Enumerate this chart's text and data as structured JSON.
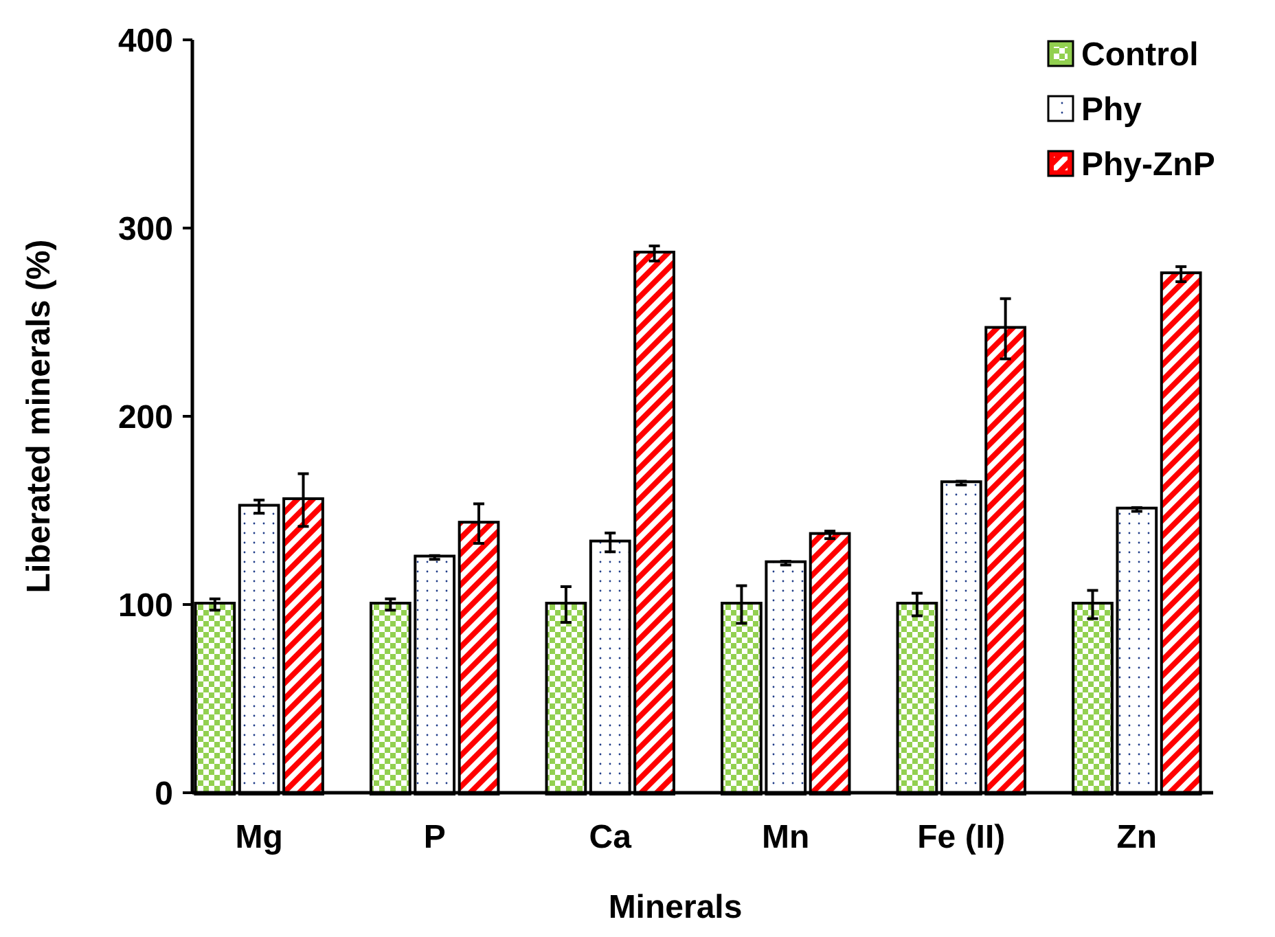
{
  "chart_data": {
    "type": "bar",
    "xlabel": "Minerals",
    "ylabel": "Liberated minerals (%)",
    "categories": [
      "Mg",
      "P",
      "Ca",
      "Mn",
      "Fe (II)",
      "Zn"
    ],
    "series": [
      {
        "name": "Control",
        "color": "#92d050",
        "values": [
          100,
          100,
          100,
          100,
          100,
          100
        ],
        "errors": [
          3,
          3,
          9.5,
          10,
          6,
          7.5
        ]
      },
      {
        "name": "Phy",
        "color": "#ffffff",
        "values": [
          152,
          125,
          133,
          122,
          164.5,
          150.5
        ],
        "errors": [
          3.5,
          1,
          5,
          1,
          1,
          1
        ]
      },
      {
        "name": "Phy-ZnP",
        "color": "#ff0000",
        "values": [
          155.5,
          143,
          286.5,
          137,
          246.5,
          275.5
        ],
        "errors": [
          14,
          10.5,
          4,
          2,
          16,
          4
        ]
      }
    ],
    "ylim": [
      0,
      400
    ],
    "yticks": [
      0,
      100,
      200,
      300,
      400
    ],
    "grid": false,
    "legend": "top right"
  }
}
